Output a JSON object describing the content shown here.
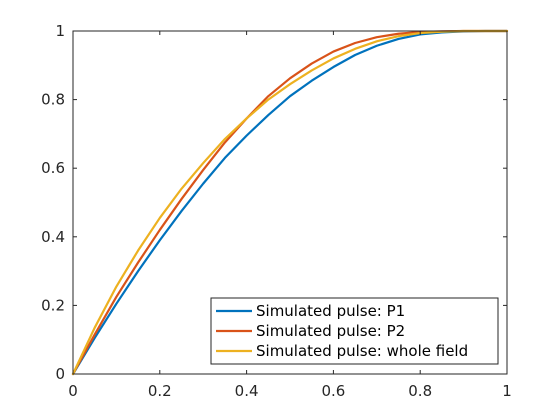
{
  "chart_data": {
    "type": "line",
    "title": "",
    "xlabel": "",
    "ylabel": "",
    "xlim": [
      0,
      1
    ],
    "ylim": [
      0,
      1
    ],
    "xticks": [
      "0",
      "0.2",
      "0.4",
      "0.6",
      "0.8",
      "1"
    ],
    "yticks": [
      "0",
      "0.2",
      "0.4",
      "0.6",
      "0.8",
      "1"
    ],
    "grid": false,
    "legend_position": "bottom-right",
    "series": [
      {
        "name": "Simulated pulse: P1",
        "color": "#0072BD",
        "x": [
          0,
          0.05,
          0.1,
          0.15,
          0.2,
          0.25,
          0.3,
          0.35,
          0.4,
          0.45,
          0.5,
          0.55,
          0.6,
          0.65,
          0.7,
          0.75,
          0.8,
          0.85,
          0.9,
          0.95,
          1
        ],
        "y": [
          0,
          0.105,
          0.205,
          0.3,
          0.39,
          0.475,
          0.555,
          0.63,
          0.695,
          0.755,
          0.81,
          0.855,
          0.895,
          0.93,
          0.957,
          0.977,
          0.99,
          0.996,
          0.999,
          1,
          1
        ]
      },
      {
        "name": "Simulated pulse: P2",
        "color": "#D95319",
        "x": [
          0,
          0.05,
          0.1,
          0.15,
          0.2,
          0.25,
          0.3,
          0.35,
          0.4,
          0.45,
          0.5,
          0.55,
          0.6,
          0.65,
          0.7,
          0.75,
          0.8,
          0.85,
          0.9,
          0.95,
          1
        ],
        "y": [
          0,
          0.115,
          0.225,
          0.325,
          0.42,
          0.51,
          0.595,
          0.675,
          0.745,
          0.81,
          0.862,
          0.905,
          0.94,
          0.965,
          0.982,
          0.992,
          0.997,
          0.999,
          1,
          1,
          1
        ]
      },
      {
        "name": "Simulated pulse: whole field",
        "color": "#EDB120",
        "x": [
          0,
          0.05,
          0.1,
          0.15,
          0.2,
          0.25,
          0.3,
          0.35,
          0.4,
          0.45,
          0.5,
          0.55,
          0.6,
          0.65,
          0.7,
          0.75,
          0.8,
          0.85,
          0.9,
          0.95,
          1
        ],
        "y": [
          0,
          0.135,
          0.255,
          0.36,
          0.455,
          0.54,
          0.615,
          0.685,
          0.745,
          0.8,
          0.845,
          0.885,
          0.92,
          0.948,
          0.97,
          0.985,
          0.994,
          0.998,
          1,
          1,
          1
        ]
      }
    ]
  }
}
